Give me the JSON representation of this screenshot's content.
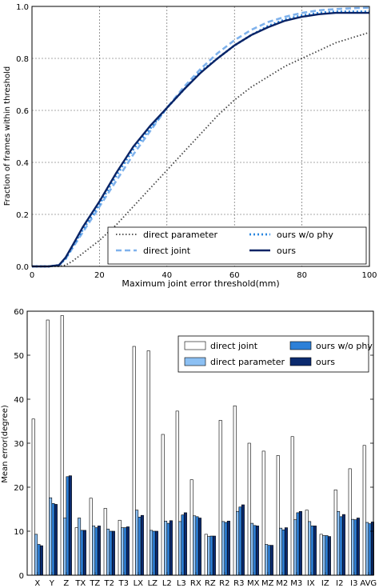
{
  "chart_data": [
    {
      "type": "line",
      "xlabel": "Maximum joint error threshold(mm)",
      "ylabel": "Fraction of frames within threshold",
      "xlim": [
        0,
        100
      ],
      "ylim": [
        0,
        1.0
      ],
      "x_ticks": [
        "0",
        "20",
        "40",
        "60",
        "80",
        "100"
      ],
      "y_ticks": [
        "0.0",
        "0.2",
        "0.4",
        "0.6",
        "0.8",
        "1.0"
      ],
      "grid": true,
      "legend": "bottom-right",
      "x": [
        0,
        5,
        8,
        10,
        12,
        15,
        20,
        25,
        30,
        35,
        40,
        45,
        50,
        55,
        60,
        65,
        70,
        75,
        80,
        85,
        90,
        95,
        100
      ],
      "series": [
        {
          "name": "direct parameter",
          "color": "#444444",
          "style": "dotted",
          "values": [
            0,
            0,
            0,
            0.005,
            0.02,
            0.05,
            0.1,
            0.16,
            0.23,
            0.3,
            0.37,
            0.44,
            0.51,
            0.58,
            0.64,
            0.69,
            0.73,
            0.77,
            0.8,
            0.83,
            0.86,
            0.88,
            0.9
          ]
        },
        {
          "name": "direct joint",
          "color": "#7fb2ec",
          "style": "dashed",
          "values": [
            0,
            0,
            0.005,
            0.03,
            0.07,
            0.13,
            0.23,
            0.33,
            0.43,
            0.52,
            0.61,
            0.69,
            0.76,
            0.82,
            0.87,
            0.91,
            0.94,
            0.96,
            0.975,
            0.985,
            0.99,
            0.993,
            0.995
          ]
        },
        {
          "name": "ours w/o phy",
          "color": "#2a86e0",
          "style": "dotted",
          "values": [
            0,
            0,
            0.005,
            0.03,
            0.075,
            0.14,
            0.24,
            0.35,
            0.45,
            0.53,
            0.61,
            0.68,
            0.75,
            0.8,
            0.85,
            0.89,
            0.925,
            0.95,
            0.965,
            0.975,
            0.98,
            0.98,
            0.98
          ]
        },
        {
          "name": "ours",
          "color": "#0a2466",
          "style": "solid",
          "values": [
            0,
            0,
            0.005,
            0.035,
            0.08,
            0.15,
            0.25,
            0.36,
            0.46,
            0.54,
            0.61,
            0.68,
            0.745,
            0.8,
            0.85,
            0.89,
            0.92,
            0.945,
            0.96,
            0.97,
            0.975,
            0.975,
            0.975
          ]
        }
      ]
    },
    {
      "type": "bar",
      "ylabel": "Mean error(degree)",
      "ylim": [
        0,
        60
      ],
      "y_ticks": [
        "0",
        "10",
        "20",
        "30",
        "40",
        "50",
        "60"
      ],
      "grid": false,
      "legend": "top-right",
      "categories": [
        "X",
        "Y",
        "Z",
        "TX",
        "TZ",
        "T2",
        "T3",
        "LX",
        "LZ",
        "L2",
        "L3",
        "RX",
        "RZ",
        "R2",
        "R3",
        "MX",
        "MZ",
        "M2",
        "M3",
        "IX",
        "IZ",
        "I2",
        "I3",
        "AVG"
      ],
      "series": [
        {
          "name": "direct joint",
          "color": "#ffffff",
          "values": [
            35.5,
            58.0,
            59.0,
            10.8,
            17.5,
            15.2,
            12.5,
            52.0,
            51.0,
            32.0,
            37.3,
            21.7,
            9.3,
            35.2,
            38.5,
            30.0,
            28.2,
            27.2,
            31.5,
            14.8,
            9.3,
            19.4,
            24.2,
            29.5
          ]
        },
        {
          "name": "direct parameter",
          "color": "#8cc0f3",
          "values": [
            9.3,
            17.6,
            13.0,
            13.0,
            11.2,
            10.5,
            10.8,
            14.8,
            10.2,
            12.3,
            12.2,
            13.5,
            8.8,
            12.2,
            14.5,
            11.8,
            7.0,
            10.7,
            12.6,
            12.2,
            9.0,
            14.5,
            12.7,
            12.0
          ]
        },
        {
          "name": "ours w/o phy",
          "color": "#2d80d8",
          "values": [
            7.0,
            16.3,
            22.4,
            10.2,
            10.8,
            10.0,
            10.8,
            13.2,
            10.0,
            11.8,
            13.7,
            13.3,
            8.9,
            12.0,
            15.5,
            11.3,
            6.8,
            10.3,
            14.2,
            11.2,
            9.0,
            13.3,
            12.6,
            11.7
          ]
        },
        {
          "name": "ours",
          "color": "#0b2a6e",
          "values": [
            6.7,
            16.1,
            22.6,
            10.2,
            11.2,
            10.0,
            11.0,
            13.6,
            10.0,
            12.4,
            14.2,
            13.0,
            8.9,
            12.3,
            16.0,
            11.2,
            6.8,
            10.8,
            14.5,
            11.2,
            8.8,
            13.8,
            13.0,
            12.1
          ]
        }
      ]
    }
  ]
}
